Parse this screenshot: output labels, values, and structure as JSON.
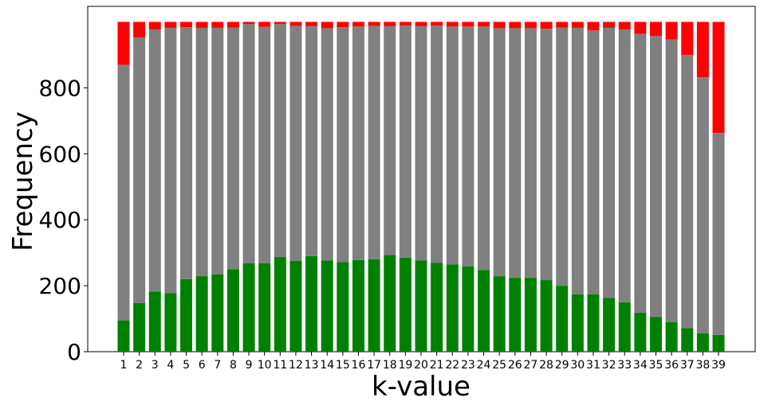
{
  "chart_data": {
    "type": "bar",
    "stacked": true,
    "title": "",
    "xlabel": "k-value",
    "ylabel": "Frequency",
    "ylim": [
      0,
      1000
    ],
    "yticks": [
      0,
      200,
      400,
      600,
      800
    ],
    "grid": false,
    "categories": [
      "1",
      "2",
      "3",
      "4",
      "5",
      "6",
      "7",
      "8",
      "9",
      "10",
      "11",
      "12",
      "13",
      "14",
      "15",
      "16",
      "17",
      "18",
      "19",
      "20",
      "21",
      "22",
      "23",
      "24",
      "25",
      "26",
      "27",
      "28",
      "29",
      "30",
      "31",
      "32",
      "33",
      "34",
      "35",
      "36",
      "37",
      "38",
      "39"
    ],
    "series": [
      {
        "color": "#008000",
        "values": [
          95,
          148,
          182,
          178,
          220,
          229,
          234,
          250,
          268,
          268,
          287,
          275,
          290,
          277,
          272,
          278,
          280,
          293,
          285,
          277,
          269,
          265,
          259,
          248,
          229,
          224,
          224,
          217,
          200,
          174,
          174,
          163,
          150,
          118,
          105,
          90,
          71,
          56,
          51
        ]
      },
      {
        "color": "#808080",
        "values": [
          775,
          805,
          795,
          804,
          764,
          753,
          748,
          733,
          726,
          717,
          707,
          713,
          697,
          704,
          712,
          708,
          708,
          694,
          704,
          710,
          720,
          721,
          727,
          738,
          752,
          757,
          757,
          762,
          783,
          808,
          800,
          819,
          827,
          846,
          852,
          857,
          829,
          776,
          612
        ]
      },
      {
        "color": "#ff0000",
        "values": [
          130,
          47,
          23,
          18,
          16,
          18,
          18,
          17,
          6,
          15,
          6,
          12,
          13,
          19,
          16,
          14,
          12,
          13,
          11,
          13,
          11,
          14,
          14,
          14,
          19,
          19,
          19,
          21,
          17,
          18,
          26,
          18,
          23,
          36,
          43,
          53,
          100,
          168,
          337
        ]
      }
    ]
  }
}
